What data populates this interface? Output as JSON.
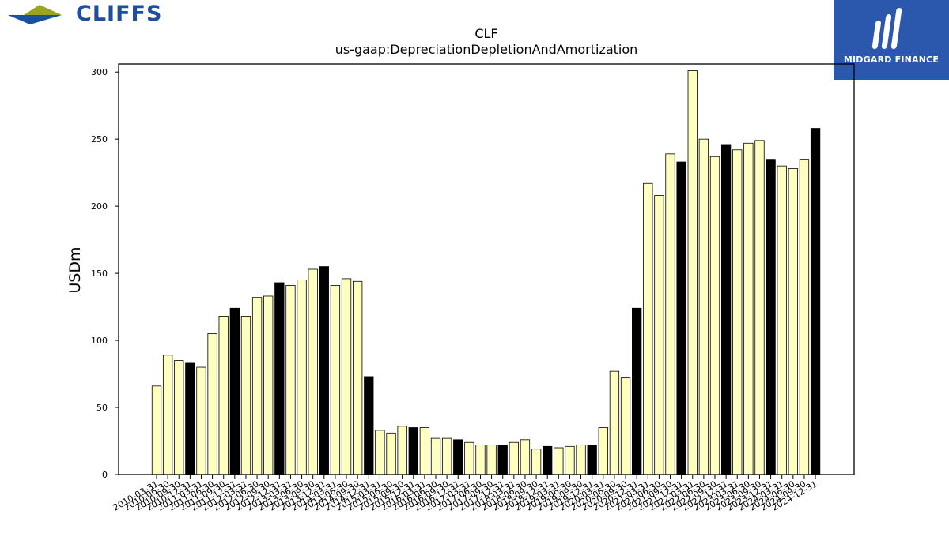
{
  "header": {
    "left_logo_text": "CLIFFS",
    "left_logo_icon": "cliffs-arrow-icon",
    "right_logo_text": "MIDGARD FINANCE",
    "right_logo_icon": "midgard-m-icon",
    "right_logo_bg": "#2b58ad",
    "left_logo_color": "#1e4f9c"
  },
  "chart_data": {
    "type": "bar",
    "title": "CLF",
    "subtitle": "us-gaap:DepreciationDepletionAndAmortization",
    "ylabel": "USDm",
    "xlabel": "",
    "ylim": [
      0,
      306
    ],
    "yticks": [
      0,
      50,
      100,
      150,
      200,
      250,
      300
    ],
    "grid": false,
    "colors": {
      "quarter": "#ffffc0",
      "year_end": "#000000",
      "edge": "#000000"
    },
    "categories": [
      "2010-03-31",
      "2010-06-30",
      "2010-09-30",
      "2010-12-31",
      "2011-03-31",
      "2011-06-30",
      "2011-09-30",
      "2011-12-31",
      "2012-03-31",
      "2012-06-30",
      "2012-09-30",
      "2012-12-31",
      "2013-03-31",
      "2013-06-30",
      "2013-09-30",
      "2013-12-31",
      "2014-03-31",
      "2014-06-30",
      "2014-09-30",
      "2014-12-31",
      "2015-03-31",
      "2015-06-30",
      "2015-09-30",
      "2015-12-31",
      "2016-03-31",
      "2016-06-30",
      "2016-09-30",
      "2016-12-31",
      "2017-03-31",
      "2017-06-30",
      "2017-09-30",
      "2017-12-31",
      "2018-03-31",
      "2018-06-30",
      "2018-09-30",
      "2018-12-31",
      "2019-03-31",
      "2019-06-30",
      "2019-09-30",
      "2019-12-31",
      "2020-03-31",
      "2020-06-30",
      "2020-09-30",
      "2020-12-31",
      "2021-03-31",
      "2021-06-30",
      "2021-09-30",
      "2021-12-31",
      "2022-03-31",
      "2022-06-30",
      "2022-09-30",
      "2022-12-31",
      "2023-03-31",
      "2023-06-30",
      "2023-09-30",
      "2023-12-31",
      "2024-03-31",
      "2024-06-30",
      "2024-09-30",
      "2024-12-31"
    ],
    "values": [
      66,
      89,
      85,
      83,
      80,
      105,
      118,
      124,
      118,
      132,
      133,
      143,
      141,
      145,
      153,
      155,
      141,
      146,
      144,
      73,
      33,
      31,
      36,
      35,
      35,
      27,
      27,
      26,
      24,
      22,
      22,
      22,
      24,
      26,
      19,
      21,
      20,
      21,
      22,
      22,
      35,
      77,
      72,
      124,
      217,
      208,
      239,
      233,
      301,
      250,
      237,
      246,
      242,
      247,
      249,
      235,
      230,
      228,
      235,
      258
    ]
  }
}
